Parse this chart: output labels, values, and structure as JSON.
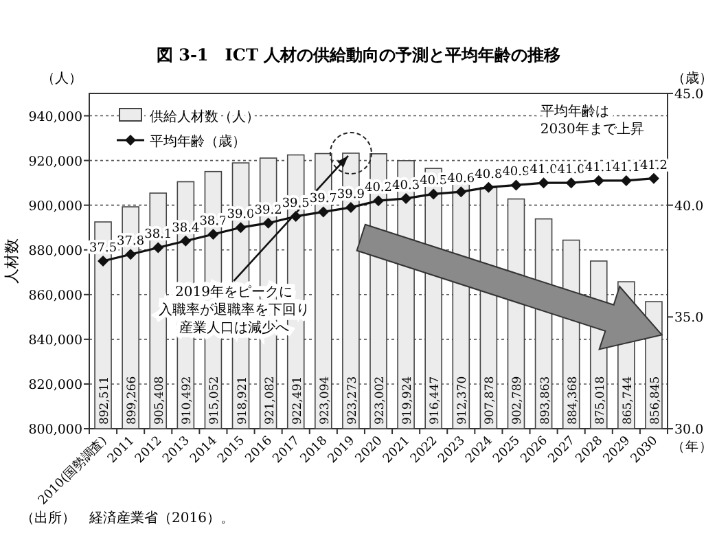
{
  "chart_data": {
    "type": "bar",
    "title": "図 3-1　ICT 人材の供給動向の予測と平均年齢の推移",
    "categories": [
      "2010(国勢調査)",
      "2011",
      "2012",
      "2013",
      "2014",
      "2015",
      "2016",
      "2017",
      "2018",
      "2019",
      "2020",
      "2021",
      "2022",
      "2023",
      "2024",
      "2025",
      "2026",
      "2027",
      "2028",
      "2029",
      "2030"
    ],
    "series": [
      {
        "name": "供給人材数（人）",
        "color": "#ececec",
        "values": [
          892511,
          899266,
          905408,
          910492,
          915052,
          918921,
          921082,
          922491,
          923094,
          923273,
          923002,
          919924,
          916447,
          912370,
          907878,
          902789,
          893863,
          884368,
          875018,
          865744,
          856845
        ],
        "value_labels": [
          "892,511",
          "899,266",
          "905,408",
          "910,492",
          "915,052",
          "918,921",
          "921,082",
          "922,491",
          "923,094",
          "923,273",
          "923,002",
          "919,924",
          "916,447",
          "912,370",
          "907,878",
          "902,789",
          "893,863",
          "884,368",
          "875,018",
          "865,744",
          "856,845"
        ]
      },
      {
        "name": "平均年齢（歳）",
        "type": "line",
        "axis": "y2",
        "color": "#111111",
        "values": [
          37.5,
          37.8,
          38.1,
          38.4,
          38.7,
          39.0,
          39.2,
          39.5,
          39.7,
          39.9,
          40.2,
          40.3,
          40.5,
          40.6,
          40.8,
          40.9,
          41.0,
          41.0,
          41.1,
          41.1,
          41.2
        ],
        "value_labels": [
          "37.5",
          "37.8",
          "38.1",
          "38.4",
          "38.7",
          "39.0",
          "39.2",
          "39.5",
          "39.7",
          "39.9",
          "40.2",
          "40.3",
          "40.5",
          "40.6",
          "40.8",
          "40.9",
          "41.0",
          "41.0",
          "41.1",
          "41.1",
          "41.2"
        ]
      }
    ],
    "ylabel": "人材数",
    "y2label": "（歳）",
    "xlabel": "（年）",
    "ylim": [
      800000,
      950000
    ],
    "yticks": [
      {
        "value": 800000,
        "label": "800,000"
      },
      {
        "value": 820000,
        "label": "820,000"
      },
      {
        "value": 840000,
        "label": "840,000"
      },
      {
        "value": 860000,
        "label": "860,000"
      },
      {
        "value": 880000,
        "label": "880,000"
      },
      {
        "value": 900000,
        "label": "900,000"
      },
      {
        "value": 920000,
        "label": "920,000"
      },
      {
        "value": 940000,
        "label": "940,000"
      }
    ],
    "y2lim": [
      30,
      45
    ],
    "y2ticks": [
      {
        "value": 30,
        "label": "30.0"
      },
      {
        "value": 35,
        "label": "35.0"
      },
      {
        "value": 40,
        "label": "40.0"
      },
      {
        "value": 45,
        "label": "45.0"
      }
    ],
    "annotations": [
      "（人）",
      {
        "text": "2019年をピークに",
        "x": "2019",
        "y": 923273
      },
      "入職率が退職率を下回り",
      "産業人口は減少へ",
      "平均年齢は",
      "2030年まで上昇",
      "（出所）　経済産業省（2016）。"
    ],
    "grid": "y",
    "legend": "top left",
    "marker": "diamond",
    "line_style": "solid"
  }
}
